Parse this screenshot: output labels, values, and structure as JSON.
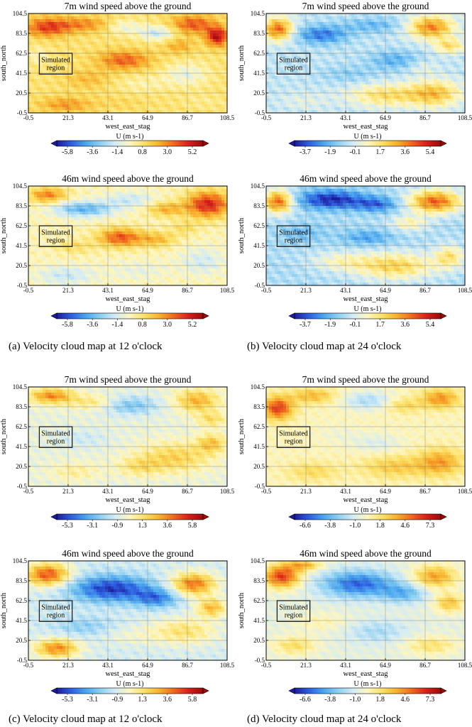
{
  "captions": [
    "(a) Velocity cloud map at 12 o'clock",
    "(b) Velocity cloud map at 24 o'clock",
    "(c) Velocity cloud map at 12 o'clock",
    "(d) Velocity cloud map at 24 o'clock"
  ],
  "colormap": [
    "#1c1c9e",
    "#2e5fe0",
    "#4aa6ee",
    "#8fd0f2",
    "#d4ecf4",
    "#fdf6bf",
    "#fbe066",
    "#f7b12d",
    "#f0691f",
    "#d8201b",
    "#9c0a0a"
  ],
  "chart_data": [
    {
      "type": "heatmap",
      "title": "7m wind speed above the ground",
      "xlabel": "west_east_stag",
      "ylabel": "south_north",
      "x_ticks": [
        "-0.5",
        "21.3",
        "43.1",
        "64.9",
        "86.7",
        "108.5"
      ],
      "y_ticks": [
        "-0.5",
        "20.5",
        "41.5",
        "62.5",
        "83.5",
        "104.5"
      ],
      "xlim": [
        -0.5,
        108.5
      ],
      "ylim": [
        -0.5,
        104.5
      ],
      "grid": true,
      "colorbar_label": "U (m s-1)",
      "colorbar_ticks": [
        "-5.8",
        "-3.6",
        "-1.4",
        "0.8",
        "3.0",
        "5.2"
      ],
      "vmin": -6.9,
      "vmax": 6.3,
      "annotation": [
        "Simulated",
        "region"
      ],
      "region": [
        5.5,
        40.5,
        23.5,
        62.5
      ],
      "field": {
        "base": 0.8,
        "blobs": [
          [
            10,
            90,
            12,
            10,
            3.6
          ],
          [
            30,
            93,
            14,
            8,
            2.2
          ],
          [
            52,
            90,
            10,
            8,
            -1.6
          ],
          [
            70,
            84,
            10,
            8,
            -2.6
          ],
          [
            90,
            93,
            12,
            10,
            3.2
          ],
          [
            103,
            80,
            6,
            10,
            4.8
          ],
          [
            82,
            70,
            8,
            8,
            1.6
          ],
          [
            52,
            55,
            14,
            10,
            3.0
          ],
          [
            32,
            35,
            12,
            10,
            1.2
          ],
          [
            62,
            30,
            14,
            10,
            -0.8
          ],
          [
            86,
            40,
            12,
            12,
            -1.8
          ],
          [
            20,
            8,
            14,
            8,
            2.0
          ],
          [
            50,
            10,
            14,
            8,
            0.4
          ],
          [
            95,
            12,
            12,
            8,
            -0.4
          ],
          [
            5,
            60,
            6,
            10,
            -1.0
          ]
        ]
      }
    },
    {
      "type": "heatmap",
      "title": "7m wind speed above the ground",
      "xlabel": "west_east_stag",
      "ylabel": "south_north",
      "x_ticks": [
        "-0.5",
        "21.3",
        "43.1",
        "64.9",
        "86.7",
        "108.5"
      ],
      "y_ticks": [
        "-0.5",
        "20.5",
        "41.5",
        "62.5",
        "83.5",
        "104.5"
      ],
      "xlim": [
        -0.5,
        108.5
      ],
      "ylim": [
        -0.5,
        104.5
      ],
      "grid": true,
      "colorbar_label": "U (m s-1)",
      "colorbar_ticks": [
        "-3.7",
        "-1.9",
        "-0.1",
        "1.7",
        "3.6",
        "5.4"
      ],
      "vmin": -4.6,
      "vmax": 6.3,
      "annotation": [
        "Simulated",
        "region"
      ],
      "region": [
        5.5,
        40.5,
        23.5,
        62.5
      ],
      "field": {
        "base": -0.5,
        "blobs": [
          [
            6,
            88,
            8,
            12,
            4.6
          ],
          [
            30,
            82,
            14,
            10,
            -2.6
          ],
          [
            58,
            92,
            16,
            8,
            -1.4
          ],
          [
            90,
            90,
            12,
            12,
            4.2
          ],
          [
            100,
            70,
            8,
            8,
            2.4
          ],
          [
            70,
            55,
            14,
            10,
            -1.6
          ],
          [
            45,
            40,
            16,
            10,
            -0.8
          ],
          [
            65,
            18,
            20,
            12,
            2.4
          ],
          [
            92,
            20,
            14,
            14,
            3.0
          ],
          [
            20,
            12,
            14,
            10,
            0.6
          ],
          [
            85,
            48,
            8,
            8,
            0.8
          ]
        ]
      }
    },
    {
      "type": "heatmap",
      "title": "46m wind speed above the ground",
      "xlabel": "west_east_stag",
      "ylabel": "south_north",
      "x_ticks": [
        "-0.5",
        "21.3",
        "43.1",
        "64.9",
        "86.7",
        "108.5"
      ],
      "y_ticks": [
        "-0.5",
        "20.5",
        "41.5",
        "62.5",
        "83.5",
        "104.5"
      ],
      "xlim": [
        -0.5,
        108.5
      ],
      "ylim": [
        -0.5,
        104.5
      ],
      "grid": true,
      "colorbar_label": "U (m s-1)",
      "colorbar_ticks": [
        "-5.8",
        "-3.6",
        "-1.4",
        "0.8",
        "3.0",
        "5.2"
      ],
      "vmin": -6.9,
      "vmax": 6.3,
      "annotation": [
        "Simulated",
        "region"
      ],
      "region": [
        5.5,
        40.5,
        23.5,
        62.5
      ],
      "field": {
        "base": -0.2,
        "blobs": [
          [
            10,
            95,
            10,
            8,
            3.4
          ],
          [
            30,
            80,
            16,
            8,
            -3.6
          ],
          [
            55,
            90,
            14,
            8,
            -1.6
          ],
          [
            75,
            80,
            10,
            8,
            2.4
          ],
          [
            98,
            85,
            12,
            14,
            5.2
          ],
          [
            50,
            50,
            12,
            10,
            4.2
          ],
          [
            70,
            48,
            10,
            8,
            2.2
          ],
          [
            25,
            40,
            10,
            8,
            1.2
          ],
          [
            20,
            10,
            16,
            10,
            -1.6
          ],
          [
            60,
            15,
            16,
            10,
            -0.8
          ],
          [
            95,
            25,
            12,
            14,
            -1.4
          ],
          [
            85,
            60,
            8,
            8,
            1.2
          ]
        ]
      }
    },
    {
      "type": "heatmap",
      "title": "46m wind speed above the ground",
      "xlabel": "west_east_stag",
      "ylabel": "south_north",
      "x_ticks": [
        "-0.5",
        "21.3",
        "43.1",
        "64.9",
        "86.7",
        "108.5"
      ],
      "y_ticks": [
        "-0.5",
        "20.5",
        "41.5",
        "62.5",
        "83.5",
        "104.5"
      ],
      "xlim": [
        -0.5,
        108.5
      ],
      "ylim": [
        -0.5,
        104.5
      ],
      "grid": true,
      "colorbar_label": "U (m s-1)",
      "colorbar_ticks": [
        "-3.7",
        "-1.9",
        "-0.1",
        "1.7",
        "3.6",
        "5.4"
      ],
      "vmin": -4.6,
      "vmax": 6.3,
      "annotation": [
        "Simulated",
        "region"
      ],
      "region": [
        5.5,
        40.5,
        23.5,
        62.5
      ],
      "field": {
        "base": -0.8,
        "blobs": [
          [
            6,
            88,
            8,
            12,
            5.0
          ],
          [
            35,
            90,
            18,
            10,
            -3.6
          ],
          [
            60,
            85,
            12,
            8,
            -2.4
          ],
          [
            92,
            88,
            14,
            12,
            5.0
          ],
          [
            78,
            65,
            10,
            8,
            1.8
          ],
          [
            70,
            20,
            22,
            14,
            3.0
          ],
          [
            40,
            25,
            16,
            10,
            1.4
          ],
          [
            100,
            30,
            8,
            12,
            2.4
          ],
          [
            20,
            55,
            12,
            10,
            -1.0
          ],
          [
            55,
            50,
            14,
            8,
            -1.6
          ]
        ]
      }
    },
    {
      "type": "heatmap",
      "title": "7m wind speed above the ground",
      "xlabel": "west_east_stag",
      "ylabel": "south_north",
      "x_ticks": [
        "-0.5",
        "21.3",
        "43.1",
        "64.9",
        "86.7",
        "108.5"
      ],
      "y_ticks": [
        "-0.5",
        "20.5",
        "41.5",
        "62.5",
        "83.5",
        "104.5"
      ],
      "xlim": [
        -0.5,
        108.5
      ],
      "ylim": [
        -0.5,
        104.5
      ],
      "grid": true,
      "colorbar_label": "U (m s-1)",
      "colorbar_ticks": [
        "-5.3",
        "-3.1",
        "-0.9",
        "1.3",
        "3.6",
        "5.8"
      ],
      "vmin": -6.4,
      "vmax": 6.9,
      "annotation": [
        "Simulated",
        "region"
      ],
      "region": [
        5.5,
        40.5,
        23.5,
        62.5
      ],
      "field": {
        "base": -0.4,
        "blobs": [
          [
            12,
            95,
            12,
            8,
            4.0
          ],
          [
            35,
            88,
            14,
            8,
            1.8
          ],
          [
            55,
            85,
            16,
            10,
            -2.4
          ],
          [
            92,
            90,
            12,
            12,
            3.2
          ],
          [
            100,
            70,
            8,
            8,
            2.0
          ],
          [
            80,
            30,
            20,
            16,
            2.4
          ],
          [
            60,
            20,
            12,
            10,
            1.6
          ],
          [
            30,
            50,
            14,
            10,
            -0.8
          ],
          [
            25,
            15,
            14,
            10,
            1.2
          ],
          [
            100,
            45,
            8,
            10,
            2.6
          ]
        ]
      }
    },
    {
      "type": "heatmap",
      "title": "7m wind speed above the ground",
      "xlabel": "west_east_stag",
      "ylabel": "south_north",
      "x_ticks": [
        "-0.5",
        "21.3",
        "43.1",
        "64.9",
        "86.7",
        "108.5"
      ],
      "y_ticks": [
        "-0.5",
        "20.5",
        "41.5",
        "62.5",
        "83.5",
        "104.5"
      ],
      "xlim": [
        -0.5,
        108.5
      ],
      "ylim": [
        -0.5,
        104.5
      ],
      "grid": true,
      "colorbar_label": "U (m s-1)",
      "colorbar_ticks": [
        "-6.6",
        "-3.8",
        "-1.0",
        "1.8",
        "4.6",
        "7.3"
      ],
      "vmin": -8.0,
      "vmax": 8.7,
      "annotation": [
        "Simulated",
        "region"
      ],
      "region": [
        5.5,
        40.5,
        23.5,
        62.5
      ],
      "field": {
        "base": 0.4,
        "blobs": [
          [
            6,
            82,
            8,
            12,
            6.0
          ],
          [
            25,
            95,
            12,
            8,
            3.0
          ],
          [
            55,
            90,
            14,
            10,
            -2.6
          ],
          [
            75,
            85,
            10,
            8,
            2.0
          ],
          [
            95,
            92,
            10,
            10,
            4.0
          ],
          [
            60,
            45,
            14,
            10,
            -1.4
          ],
          [
            70,
            20,
            18,
            12,
            2.4
          ],
          [
            95,
            25,
            12,
            14,
            3.6
          ],
          [
            25,
            15,
            14,
            10,
            1.8
          ],
          [
            40,
            55,
            12,
            10,
            -0.6
          ]
        ]
      }
    },
    {
      "type": "heatmap",
      "title": "46m wind speed above the ground",
      "xlabel": "west_east_stag",
      "ylabel": "south_north",
      "x_ticks": [
        "-0.5",
        "21.3",
        "43.1",
        "64.9",
        "86.7",
        "108.5"
      ],
      "y_ticks": [
        "-0.5",
        "20.5",
        "41.5",
        "62.5",
        "83.5",
        "104.5"
      ],
      "xlim": [
        -0.5,
        108.5
      ],
      "ylim": [
        -0.5,
        104.5
      ],
      "grid": true,
      "colorbar_label": "U (m s-1)",
      "colorbar_ticks": [
        "-5.3",
        "-3.1",
        "-0.9",
        "1.3",
        "3.6",
        "5.8"
      ],
      "vmin": -6.4,
      "vmax": 6.9,
      "annotation": [
        "Simulated",
        "region"
      ],
      "region": [
        5.5,
        40.5,
        23.5,
        62.5
      ],
      "field": {
        "base": -1.0,
        "blobs": [
          [
            10,
            90,
            12,
            12,
            5.6
          ],
          [
            45,
            75,
            22,
            14,
            -4.8
          ],
          [
            70,
            65,
            12,
            10,
            -3.2
          ],
          [
            90,
            80,
            12,
            12,
            5.0
          ],
          [
            100,
            55,
            8,
            10,
            3.6
          ],
          [
            15,
            12,
            12,
            10,
            4.6
          ],
          [
            85,
            30,
            18,
            14,
            2.4
          ],
          [
            30,
            35,
            16,
            10,
            -1.4
          ],
          [
            55,
            25,
            16,
            10,
            0.8
          ]
        ]
      }
    },
    {
      "type": "heatmap",
      "title": "46m wind speed above the ground",
      "xlabel": "west_east_stag",
      "ylabel": "south_north",
      "x_ticks": [
        "-0.5",
        "21.3",
        "43.1",
        "64.9",
        "86.7",
        "108.5"
      ],
      "y_ticks": [
        "-0.5",
        "20.5",
        "41.5",
        "62.5",
        "83.5",
        "104.5"
      ],
      "xlim": [
        -0.5,
        108.5
      ],
      "ylim": [
        -0.5,
        104.5
      ],
      "grid": true,
      "colorbar_label": "U (m s-1)",
      "colorbar_ticks": [
        "-6.6",
        "-3.8",
        "-1.0",
        "1.8",
        "4.6",
        "7.3"
      ],
      "vmin": -8.0,
      "vmax": 8.7,
      "annotation": [
        "Simulated",
        "region"
      ],
      "region": [
        5.5,
        40.5,
        23.5,
        62.5
      ],
      "field": {
        "base": -0.6,
        "blobs": [
          [
            8,
            88,
            10,
            12,
            7.0
          ],
          [
            20,
            100,
            10,
            6,
            4.0
          ],
          [
            50,
            80,
            20,
            14,
            -5.6
          ],
          [
            75,
            70,
            12,
            10,
            -3.2
          ],
          [
            92,
            88,
            12,
            12,
            4.6
          ],
          [
            100,
            60,
            8,
            10,
            3.6
          ],
          [
            15,
            15,
            12,
            10,
            2.6
          ],
          [
            90,
            15,
            14,
            10,
            2.4
          ],
          [
            30,
            40,
            16,
            10,
            1.2
          ],
          [
            60,
            30,
            16,
            12,
            -1.8
          ]
        ]
      }
    }
  ]
}
